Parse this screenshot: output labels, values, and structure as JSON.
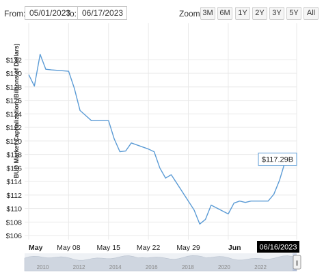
{
  "range_selector": {
    "from_label": "From:",
    "from_value": "05/01/2023",
    "to_label": "To:",
    "to_value": "06/17/2023",
    "zoom_label": "Zoom:",
    "zoom_buttons": [
      "3M",
      "6M",
      "1Y",
      "2Y",
      "3Y",
      "5Y",
      "All"
    ]
  },
  "colors": {
    "line": "#5b9bd5",
    "navigator_fill": "#cfd6e0",
    "tooltip_border": "#5b9bd5",
    "date_badge_bg": "#000000"
  },
  "chart_data": {
    "type": "line",
    "title": "",
    "ylabel": "BUD Market Capitalization (Billions of Dollars)",
    "xlabel": "",
    "ylim": [
      105.4,
      137.4
    ],
    "yticks": [
      106,
      108,
      110,
      112,
      114,
      116,
      118,
      120,
      122,
      124,
      126,
      128,
      130,
      132
    ],
    "ytick_labels": [
      "$106",
      "$108",
      "$110",
      "$112",
      "$114",
      "$116",
      "$118",
      "$120",
      "$122",
      "$124",
      "$126",
      "$128",
      "$130",
      "$132"
    ],
    "xticks": [
      {
        "date": "2023-05-01",
        "label": "May",
        "bold": true
      },
      {
        "date": "2023-05-08",
        "label": "May 08",
        "bold": false
      },
      {
        "date": "2023-05-15",
        "label": "May 15",
        "bold": false
      },
      {
        "date": "2023-05-22",
        "label": "May 22",
        "bold": false
      },
      {
        "date": "2023-05-29",
        "label": "May 29",
        "bold": false
      },
      {
        "date": "2023-06-05",
        "label": "Jun",
        "bold": true
      }
    ],
    "x_range": [
      "2023-05-01",
      "2023-06-17"
    ],
    "grid": true,
    "series": [
      {
        "points": [
          {
            "x": "2023-05-01",
            "y": 129.8
          },
          {
            "x": "2023-05-02",
            "y": 128.1
          },
          {
            "x": "2023-05-03",
            "y": 132.8
          },
          {
            "x": "2023-05-04",
            "y": 130.6
          },
          {
            "x": "2023-05-05",
            "y": 130.5
          },
          {
            "x": "2023-05-08",
            "y": 130.3
          },
          {
            "x": "2023-05-09",
            "y": 127.8
          },
          {
            "x": "2023-05-10",
            "y": 124.5
          },
          {
            "x": "2023-05-12",
            "y": 123.0
          },
          {
            "x": "2023-05-15",
            "y": 123.0
          },
          {
            "x": "2023-05-16",
            "y": 120.3
          },
          {
            "x": "2023-05-17",
            "y": 118.4
          },
          {
            "x": "2023-05-18",
            "y": 118.5
          },
          {
            "x": "2023-05-19",
            "y": 119.7
          },
          {
            "x": "2023-05-22",
            "y": 118.8
          },
          {
            "x": "2023-05-23",
            "y": 118.4
          },
          {
            "x": "2023-05-24",
            "y": 116.0
          },
          {
            "x": "2023-05-25",
            "y": 114.5
          },
          {
            "x": "2023-05-26",
            "y": 115.0
          },
          {
            "x": "2023-05-30",
            "y": 109.8
          },
          {
            "x": "2023-05-31",
            "y": 107.7
          },
          {
            "x": "2023-06-01",
            "y": 108.4
          },
          {
            "x": "2023-06-02",
            "y": 110.5
          },
          {
            "x": "2023-06-05",
            "y": 109.2
          },
          {
            "x": "2023-06-06",
            "y": 110.8
          },
          {
            "x": "2023-06-07",
            "y": 111.1
          },
          {
            "x": "2023-06-08",
            "y": 110.9
          },
          {
            "x": "2023-06-09",
            "y": 111.1
          },
          {
            "x": "2023-06-12",
            "y": 111.1
          },
          {
            "x": "2023-06-13",
            "y": 112.1
          },
          {
            "x": "2023-06-14",
            "y": 114.2
          },
          {
            "x": "2023-06-15",
            "y": 117.0
          },
          {
            "x": "2023-06-16",
            "y": 117.29
          }
        ]
      }
    ],
    "last_value_label": "$117.29B",
    "last_date_label": "06/16/2023",
    "navigator": {
      "x_range": [
        "2009-01-01",
        "2023-12-31"
      ],
      "year_labels": [
        "2010",
        "2012",
        "2014",
        "2016",
        "2018",
        "2020",
        "2022"
      ],
      "handle_glyph": "||"
    }
  }
}
